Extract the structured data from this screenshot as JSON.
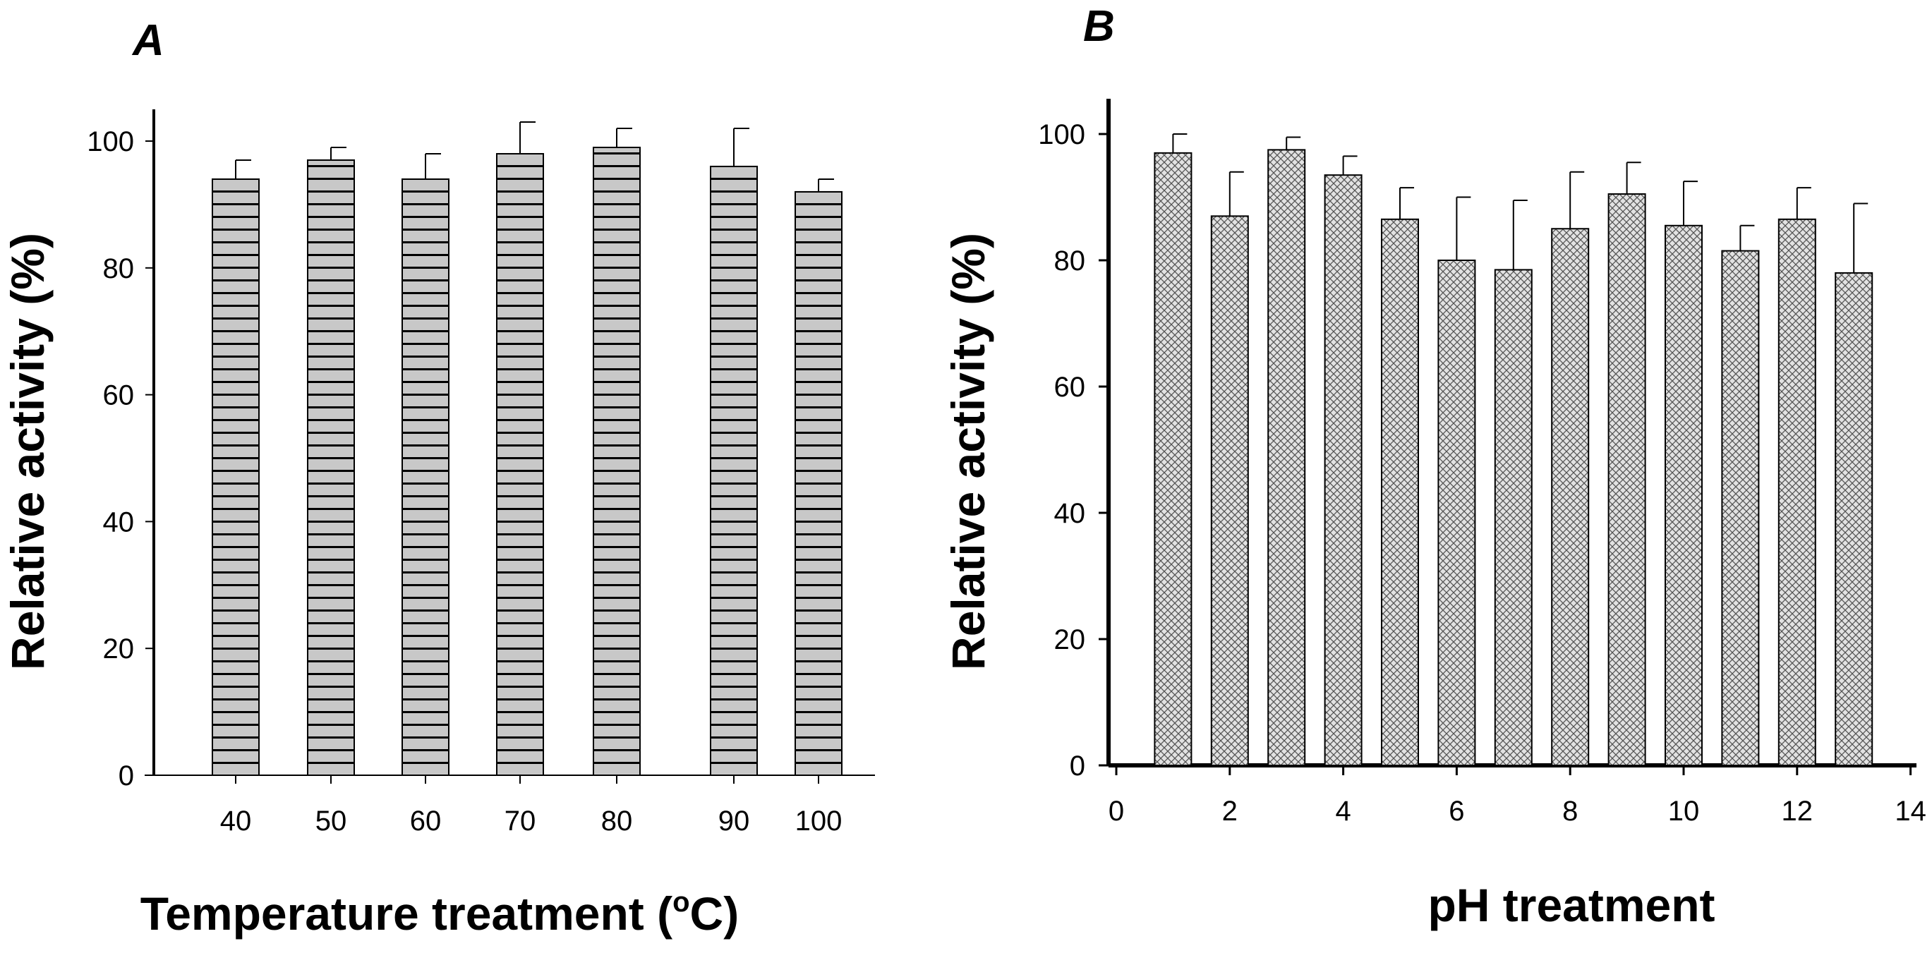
{
  "colors": {
    "bar_fill": "#c8c8c8",
    "stroke": "#000000",
    "background": "#ffffff"
  },
  "chart_data": [
    {
      "panel_label": "A",
      "type": "bar",
      "bar_pattern": "horizontal-stripes",
      "xlabel_text": "Temperature treatment (",
      "xlabel_sup": "o",
      "xlabel_tail": "C)",
      "ylabel": "Relative activity (%)",
      "ylim": [
        0,
        100
      ],
      "yticks": [
        0,
        20,
        40,
        60,
        80,
        100
      ],
      "categories": [
        "40",
        "50",
        "60",
        "70",
        "80",
        "90",
        "100"
      ],
      "values": [
        94,
        97,
        94,
        98,
        99,
        96,
        92
      ],
      "errors": [
        3,
        2,
        4,
        5,
        3,
        6,
        2
      ]
    },
    {
      "panel_label": "B",
      "type": "bar",
      "bar_pattern": "crosshatch",
      "xlabel": "pH treatment",
      "ylabel": "Relative activity (%)",
      "ylim": [
        0,
        100
      ],
      "xlim": [
        0,
        14
      ],
      "yticks": [
        0,
        20,
        40,
        60,
        80,
        100
      ],
      "xticks": [
        0,
        2,
        4,
        6,
        8,
        10,
        12,
        14
      ],
      "x": [
        1,
        2,
        3,
        4,
        5,
        6,
        7,
        8,
        9,
        10,
        11,
        12,
        13
      ],
      "values": [
        97,
        87,
        97.5,
        93.5,
        86.5,
        80,
        78.5,
        85,
        90.5,
        85.5,
        81.5,
        86.5,
        78
      ],
      "errors": [
        3,
        7,
        2,
        3,
        5,
        10,
        11,
        9,
        5,
        7,
        4,
        5,
        11
      ]
    }
  ]
}
